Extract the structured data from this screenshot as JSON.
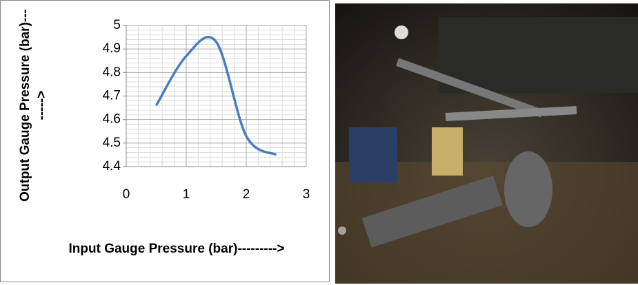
{
  "chart_data": {
    "type": "line",
    "x": [
      0.5,
      1,
      1.5,
      2,
      2.5
    ],
    "values": [
      4.66,
      4.87,
      4.93,
      4.53,
      4.45
    ],
    "color": "#4a7ebb",
    "xlim": [
      0,
      3
    ],
    "xticks": [
      0,
      1,
      2,
      3
    ],
    "ylim": [
      4.4,
      5
    ],
    "yticks": [
      4.4,
      4.5,
      4.6,
      4.7,
      4.8,
      4.9,
      5
    ],
    "grid": true,
    "x_label": "Input   Gauge Pressure  (bar)--------->",
    "y_label": "Output   Gauge Pressure (bar)-------->"
  }
}
